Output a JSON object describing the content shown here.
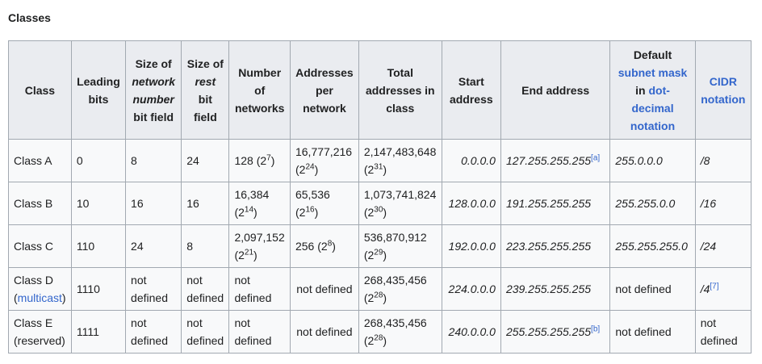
{
  "caption": "Classes",
  "headers": {
    "class": "Class",
    "leading_bits": "Leading bits",
    "size_network": {
      "pre": "Size of ",
      "em": "network number",
      "post": " bit field"
    },
    "size_rest": {
      "pre": "Size of ",
      "em": "rest",
      "post": " bit field"
    },
    "number_networks": "Number of networks",
    "addresses_per_network": "Addresses per network",
    "total_addresses": "Total addresses in class",
    "start_address": "Start address",
    "end_address": "End address",
    "default_mask": {
      "pre": "Default ",
      "link1": "subnet mask",
      "mid": " in ",
      "link2": "dot-decimal notation"
    },
    "cidr": "CIDR notation"
  },
  "rows": [
    {
      "class": "Class A",
      "class_note": "",
      "leading": "0",
      "net_bits": "8",
      "rest_bits": "24",
      "networks": {
        "val": "128 (2",
        "exp": "7",
        "close": ")"
      },
      "per_network": {
        "val": "16,777,216 (2",
        "exp": "24",
        "close": ")"
      },
      "total": {
        "val": "2,147,483,648 (2",
        "exp": "31",
        "close": ")"
      },
      "start": "0.0.0.0",
      "end": "127.255.255.255",
      "end_ref": "[a]",
      "mask": "255.0.0.0",
      "cidr": "/8",
      "cidr_ref": ""
    },
    {
      "class": "Class B",
      "class_note": "",
      "leading": "10",
      "net_bits": "16",
      "rest_bits": "16",
      "networks": {
        "val": "16,384 (2",
        "exp": "14",
        "close": ")"
      },
      "per_network": {
        "val": "65,536 (2",
        "exp": "16",
        "close": ")"
      },
      "total": {
        "val": "1,073,741,824 (2",
        "exp": "30",
        "close": ")"
      },
      "start": "128.0.0.0",
      "end": "191.255.255.255",
      "end_ref": "",
      "mask": "255.255.0.0",
      "cidr": "/16",
      "cidr_ref": ""
    },
    {
      "class": "Class C",
      "class_note": "",
      "leading": "110",
      "net_bits": "24",
      "rest_bits": "8",
      "networks": {
        "val": "2,097,152 (2",
        "exp": "21",
        "close": ")"
      },
      "per_network": {
        "val": "256 (2",
        "exp": "8",
        "close": ")"
      },
      "total": {
        "val": "536,870,912 (2",
        "exp": "29",
        "close": ")"
      },
      "start": "192.0.0.0",
      "end": "223.255.255.255",
      "end_ref": "",
      "mask": "255.255.255.0",
      "cidr": "/24",
      "cidr_ref": ""
    },
    {
      "class": "Class D",
      "class_note": "multicast",
      "leading": "1110",
      "net_bits": "not defined",
      "rest_bits": "not defined",
      "networks": {
        "val": "not defined",
        "exp": "",
        "close": ""
      },
      "per_network": {
        "val": "not defined",
        "exp": "",
        "close": ""
      },
      "total": {
        "val": "268,435,456 (2",
        "exp": "28",
        "close": ")"
      },
      "start": "224.0.0.0",
      "end": "239.255.255.255",
      "end_ref": "",
      "mask": "not defined",
      "cidr": "/4",
      "cidr_ref": "[7]"
    },
    {
      "class": "Class E",
      "class_note": "reserved",
      "leading": "1111",
      "net_bits": "not defined",
      "rest_bits": "not defined",
      "networks": {
        "val": "not defined",
        "exp": "",
        "close": ""
      },
      "per_network": {
        "val": "not defined",
        "exp": "",
        "close": ""
      },
      "total": {
        "val": "268,435,456 (2",
        "exp": "28",
        "close": ")"
      },
      "start": "240.0.0.0",
      "end": "255.255.255.255",
      "end_ref": "[b]",
      "mask": "not defined",
      "cidr": "not defined",
      "cidr_ref": ""
    }
  ]
}
